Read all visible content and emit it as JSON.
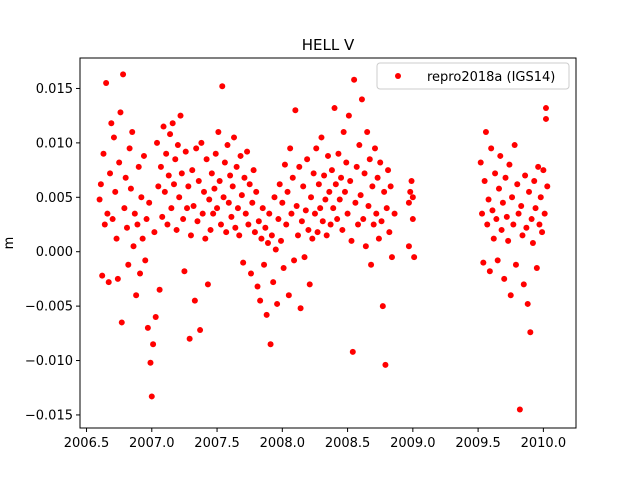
{
  "chart_data": {
    "type": "scatter",
    "title": "HELL V",
    "xlabel": "",
    "ylabel": "m",
    "xlim": [
      2006.45,
      2010.25
    ],
    "ylim": [
      -0.0162,
      0.0178
    ],
    "xticks": [
      2006.5,
      2007.0,
      2007.5,
      2008.0,
      2008.5,
      2009.0,
      2009.5,
      2010.0
    ],
    "xtick_labels": [
      "2006.5",
      "2007.0",
      "2007.5",
      "2008.0",
      "2008.5",
      "2009.0",
      "2009.5",
      "2010.0"
    ],
    "yticks": [
      -0.015,
      -0.01,
      -0.005,
      0.0,
      0.005,
      0.01,
      0.015
    ],
    "ytick_labels": [
      "−0.015",
      "−0.010",
      "−0.005",
      "0.000",
      "0.005",
      "0.010",
      "0.015"
    ],
    "grid": false,
    "legend_position": "top-right",
    "series": [
      {
        "name": "repro2018a (IGS14)",
        "color": "#ff0000",
        "marker": "circle",
        "points": [
          [
            2006.6,
            0.0048
          ],
          [
            2006.61,
            0.0062
          ],
          [
            2006.62,
            -0.0022
          ],
          [
            2006.63,
            0.009
          ],
          [
            2006.64,
            0.0025
          ],
          [
            2006.65,
            0.0155
          ],
          [
            2006.66,
            0.0035
          ],
          [
            2006.67,
            -0.0028
          ],
          [
            2006.68,
            0.0072
          ],
          [
            2006.69,
            0.0118
          ],
          [
            2006.7,
            0.003
          ],
          [
            2006.71,
            0.0105
          ],
          [
            2006.72,
            0.0055
          ],
          [
            2006.73,
            0.0012
          ],
          [
            2006.74,
            -0.0025
          ],
          [
            2006.75,
            0.0082
          ],
          [
            2006.76,
            0.0128
          ],
          [
            2006.77,
            -0.0065
          ],
          [
            2006.78,
            0.0163
          ],
          [
            2006.79,
            0.004
          ],
          [
            2006.8,
            0.0068
          ],
          [
            2006.81,
            0.0022
          ],
          [
            2006.82,
            -0.0012
          ],
          [
            2006.83,
            0.0095
          ],
          [
            2006.84,
            0.0058
          ],
          [
            2006.85,
            0.011
          ],
          [
            2006.86,
            0.0005
          ],
          [
            2006.87,
            0.0035
          ],
          [
            2006.88,
            -0.004
          ],
          [
            2006.89,
            0.0025
          ],
          [
            2006.9,
            0.0078
          ],
          [
            2006.91,
            -0.002
          ],
          [
            2006.92,
            0.005
          ],
          [
            2006.93,
            0.0012
          ],
          [
            2006.94,
            0.0088
          ],
          [
            2006.95,
            -0.0008
          ],
          [
            2006.96,
            0.003
          ],
          [
            2006.97,
            -0.007
          ],
          [
            2006.98,
            0.0045
          ],
          [
            2006.99,
            -0.0102
          ],
          [
            2007.0,
            -0.0133
          ],
          [
            2007.01,
            -0.0085
          ],
          [
            2007.02,
            0.0018
          ],
          [
            2007.03,
            -0.006
          ],
          [
            2007.04,
            0.01
          ],
          [
            2007.05,
            0.006
          ],
          [
            2007.06,
            -0.0035
          ],
          [
            2007.07,
            0.0078
          ],
          [
            2007.08,
            0.0032
          ],
          [
            2007.09,
            0.0115
          ],
          [
            2007.1,
            0.0055
          ],
          [
            2007.11,
            0.009
          ],
          [
            2007.12,
            0.0025
          ],
          [
            2007.13,
            0.007
          ],
          [
            2007.14,
            0.0108
          ],
          [
            2007.15,
            0.004
          ],
          [
            2007.16,
            0.0118
          ],
          [
            2007.17,
            0.0062
          ],
          [
            2007.18,
            0.0085
          ],
          [
            2007.19,
            0.002
          ],
          [
            2007.2,
            0.0098
          ],
          [
            2007.21,
            0.005
          ],
          [
            2007.22,
            0.0125
          ],
          [
            2007.23,
            0.0072
          ],
          [
            2007.24,
            0.003
          ],
          [
            2007.25,
            -0.0018
          ],
          [
            2007.26,
            0.0092
          ],
          [
            2007.27,
            0.004
          ],
          [
            2007.28,
            0.006
          ],
          [
            2007.29,
            -0.008
          ],
          [
            2007.3,
            0.0015
          ],
          [
            2007.31,
            0.0075
          ],
          [
            2007.32,
            0.0042
          ],
          [
            2007.33,
            -0.0045
          ],
          [
            2007.34,
            0.0095
          ],
          [
            2007.35,
            0.0028
          ],
          [
            2007.36,
            0.0065
          ],
          [
            2007.37,
            -0.0072
          ],
          [
            2007.38,
            0.01
          ],
          [
            2007.39,
            0.0035
          ],
          [
            2007.4,
            0.0055
          ],
          [
            2007.41,
            0.0012
          ],
          [
            2007.42,
            0.0085
          ],
          [
            2007.43,
            -0.003
          ],
          [
            2007.44,
            0.0048
          ],
          [
            2007.45,
            0.002
          ],
          [
            2007.46,
            0.0072
          ],
          [
            2007.47,
            0.0035
          ],
          [
            2007.48,
            0.0058
          ],
          [
            2007.49,
            0.009
          ],
          [
            2007.5,
            0.004
          ],
          [
            2007.51,
            0.011
          ],
          [
            2007.52,
            0.0065
          ],
          [
            2007.53,
            0.0025
          ],
          [
            2007.54,
            0.0152
          ],
          [
            2007.55,
            0.005
          ],
          [
            2007.56,
            0.0082
          ],
          [
            2007.57,
            0.0018
          ],
          [
            2007.58,
            0.0098
          ],
          [
            2007.59,
            0.0045
          ],
          [
            2007.6,
            0.007
          ],
          [
            2007.61,
            0.0032
          ],
          [
            2007.62,
            0.006
          ],
          [
            2007.63,
            0.0105
          ],
          [
            2007.64,
            0.0022
          ],
          [
            2007.65,
            0.0078
          ],
          [
            2007.66,
            0.004
          ],
          [
            2007.67,
            0.0015
          ],
          [
            2007.68,
            0.0088
          ],
          [
            2007.69,
            0.0052
          ],
          [
            2007.7,
            -0.001
          ],
          [
            2007.71,
            0.0068
          ],
          [
            2007.72,
            0.0035
          ],
          [
            2007.73,
            0.0092
          ],
          [
            2007.74,
            0.0025
          ],
          [
            2007.75,
            0.0062
          ],
          [
            2007.76,
            -0.002
          ],
          [
            2007.77,
            0.0045
          ],
          [
            2007.78,
            0.0075
          ],
          [
            2007.79,
            0.0018
          ],
          [
            2007.8,
            0.0055
          ],
          [
            2007.81,
            -0.0032
          ],
          [
            2007.82,
            0.0028
          ],
          [
            2007.83,
            -0.0045
          ],
          [
            2007.84,
            0.0012
          ],
          [
            2007.85,
            0.004
          ],
          [
            2007.86,
            -0.0012
          ],
          [
            2007.87,
            0.0022
          ],
          [
            2007.88,
            -0.0058
          ],
          [
            2007.89,
            0.0008
          ],
          [
            2007.9,
            0.0035
          ],
          [
            2007.91,
            -0.0085
          ],
          [
            2007.92,
            0.0015
          ],
          [
            2007.93,
            -0.0028
          ],
          [
            2007.94,
            0.005
          ],
          [
            2007.95,
            0.0002
          ],
          [
            2007.96,
            -0.0048
          ],
          [
            2007.97,
            0.003
          ],
          [
            2007.98,
            0.0062
          ],
          [
            2007.99,
            0.001
          ],
          [
            2008.0,
            0.0045
          ],
          [
            2008.01,
            -0.0015
          ],
          [
            2008.02,
            0.008
          ],
          [
            2008.03,
            0.0025
          ],
          [
            2008.04,
            0.0055
          ],
          [
            2008.05,
            -0.004
          ],
          [
            2008.06,
            0.0095
          ],
          [
            2008.07,
            0.0035
          ],
          [
            2008.08,
            0.0068
          ],
          [
            2008.09,
            -0.0008
          ],
          [
            2008.1,
            0.013
          ],
          [
            2008.11,
            0.0042
          ],
          [
            2008.12,
            0.0015
          ],
          [
            2008.13,
            0.0078
          ],
          [
            2008.14,
            -0.0052
          ],
          [
            2008.15,
            0.0028
          ],
          [
            2008.16,
            0.006
          ],
          [
            2008.17,
            -0.0005
          ],
          [
            2008.18,
            0.0038
          ],
          [
            2008.19,
            0.0085
          ],
          [
            2008.2,
            0.002
          ],
          [
            2008.21,
            -0.003
          ],
          [
            2008.22,
            0.005
          ],
          [
            2008.23,
            0.0012
          ],
          [
            2008.24,
            0.0072
          ],
          [
            2008.25,
            0.0035
          ],
          [
            2008.26,
            0.0095
          ],
          [
            2008.27,
            0.0018
          ],
          [
            2008.28,
            0.0062
          ],
          [
            2008.29,
            0.004
          ],
          [
            2008.3,
            0.0105
          ],
          [
            2008.31,
            0.0028
          ],
          [
            2008.32,
            0.007
          ],
          [
            2008.33,
            0.0048
          ],
          [
            2008.34,
            0.0015
          ],
          [
            2008.35,
            0.0088
          ],
          [
            2008.36,
            0.0055
          ],
          [
            2008.37,
            0.0025
          ],
          [
            2008.38,
            0.0075
          ],
          [
            2008.39,
            0.004
          ],
          [
            2008.4,
            0.0132
          ],
          [
            2008.41,
            0.0062
          ],
          [
            2008.42,
            0.003
          ],
          [
            2008.43,
            0.009
          ],
          [
            2008.44,
            0.0048
          ],
          [
            2008.45,
            0.0068
          ],
          [
            2008.46,
            0.002
          ],
          [
            2008.47,
            0.011
          ],
          [
            2008.48,
            0.0055
          ],
          [
            2008.49,
            0.0082
          ],
          [
            2008.5,
            0.0035
          ],
          [
            2008.51,
            0.0125
          ],
          [
            2008.52,
            0.0065
          ],
          [
            2008.53,
            0.001
          ],
          [
            2008.54,
            -0.0092
          ],
          [
            2008.55,
            0.0158
          ],
          [
            2008.56,
            0.0045
          ],
          [
            2008.57,
            0.0078
          ],
          [
            2008.58,
            0.0025
          ],
          [
            2008.59,
            0.0098
          ],
          [
            2008.6,
            0.0052
          ],
          [
            2008.61,
            0.014
          ],
          [
            2008.62,
            0.003
          ],
          [
            2008.63,
            0.0072
          ],
          [
            2008.64,
            0.0005
          ],
          [
            2008.65,
            0.011
          ],
          [
            2008.66,
            0.0042
          ],
          [
            2008.67,
            0.0085
          ],
          [
            2008.68,
            -0.0012
          ],
          [
            2008.69,
            0.006
          ],
          [
            2008.7,
            0.0025
          ],
          [
            2008.71,
            0.0095
          ],
          [
            2008.72,
            0.0035
          ],
          [
            2008.73,
            0.0068
          ],
          [
            2008.74,
            0.0012
          ],
          [
            2008.75,
            0.0082
          ],
          [
            2008.76,
            0.0028
          ],
          [
            2008.77,
            -0.005
          ],
          [
            2008.78,
            0.0055
          ],
          [
            2008.79,
            -0.0104
          ],
          [
            2008.8,
            0.004
          ],
          [
            2008.81,
            0.0075
          ],
          [
            2008.82,
            0.0018
          ],
          [
            2008.83,
            0.006
          ],
          [
            2008.84,
            -0.0005
          ],
          [
            2008.86,
            0.0035
          ],
          [
            2008.97,
            0.0045
          ],
          [
            2008.97,
            0.0005
          ],
          [
            2008.98,
            0.0055
          ],
          [
            2008.99,
            0.0065
          ],
          [
            2009.0,
            0.003
          ],
          [
            2009.0,
            0.005
          ],
          [
            2009.01,
            -0.0005
          ],
          [
            2009.52,
            0.0082
          ],
          [
            2009.53,
            0.0035
          ],
          [
            2009.54,
            -0.001
          ],
          [
            2009.55,
            0.0065
          ],
          [
            2009.56,
            0.011
          ],
          [
            2009.57,
            0.0025
          ],
          [
            2009.58,
            0.0048
          ],
          [
            2009.59,
            -0.0018
          ],
          [
            2009.6,
            0.0095
          ],
          [
            2009.61,
            0.0038
          ],
          [
            2009.62,
            0.0012
          ],
          [
            2009.63,
            0.0072
          ],
          [
            2009.64,
            0.003
          ],
          [
            2009.65,
            -0.0008
          ],
          [
            2009.66,
            0.0058
          ],
          [
            2009.67,
            0.0088
          ],
          [
            2009.68,
            0.002
          ],
          [
            2009.69,
            0.0045
          ],
          [
            2009.7,
            -0.0025
          ],
          [
            2009.71,
            0.0068
          ],
          [
            2009.72,
            0.0032
          ],
          [
            2009.73,
            0.001
          ],
          [
            2009.74,
            0.008
          ],
          [
            2009.75,
            -0.004
          ],
          [
            2009.76,
            0.005
          ],
          [
            2009.77,
            0.0025
          ],
          [
            2009.78,
            0.0098
          ],
          [
            2009.79,
            -0.0012
          ],
          [
            2009.8,
            0.0062
          ],
          [
            2009.81,
            0.0035
          ],
          [
            2009.82,
            -0.0145
          ],
          [
            2009.83,
            0.0042
          ],
          [
            2009.84,
            0.0015
          ],
          [
            2009.85,
            -0.003
          ],
          [
            2009.86,
            0.007
          ],
          [
            2009.87,
            0.0022
          ],
          [
            2009.88,
            -0.0048
          ],
          [
            2009.89,
            0.0055
          ],
          [
            2009.9,
            -0.0074
          ],
          [
            2009.91,
            0.003
          ],
          [
            2009.92,
            0.0008
          ],
          [
            2009.93,
            0.0065
          ],
          [
            2009.94,
            0.004
          ],
          [
            2009.95,
            -0.0015
          ],
          [
            2009.96,
            0.0078
          ],
          [
            2009.97,
            0.0025
          ],
          [
            2009.98,
            0.005
          ],
          [
            2009.99,
            0.0018
          ],
          [
            2010.0,
            0.0075
          ],
          [
            2010.01,
            0.0035
          ],
          [
            2010.02,
            0.0122
          ],
          [
            2010.02,
            0.0132
          ],
          [
            2010.03,
            0.006
          ]
        ]
      }
    ]
  }
}
